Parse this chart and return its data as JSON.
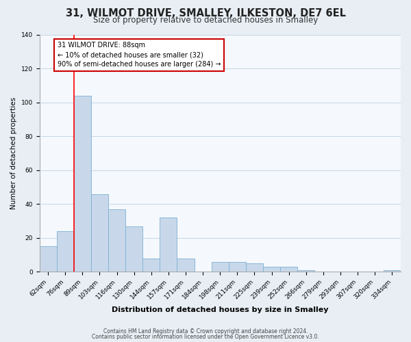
{
  "title": "31, WILMOT DRIVE, SMALLEY, ILKESTON, DE7 6EL",
  "subtitle": "Size of property relative to detached houses in Smalley",
  "xlabel": "Distribution of detached houses by size in Smalley",
  "ylabel": "Number of detached properties",
  "bar_labels": [
    "62sqm",
    "76sqm",
    "89sqm",
    "103sqm",
    "116sqm",
    "130sqm",
    "144sqm",
    "157sqm",
    "171sqm",
    "184sqm",
    "198sqm",
    "211sqm",
    "225sqm",
    "239sqm",
    "252sqm",
    "266sqm",
    "279sqm",
    "293sqm",
    "307sqm",
    "320sqm",
    "334sqm"
  ],
  "bar_heights": [
    15,
    24,
    104,
    46,
    37,
    27,
    8,
    32,
    8,
    0,
    6,
    6,
    5,
    3,
    3,
    1,
    0,
    0,
    0,
    0,
    1
  ],
  "bar_color": "#c8d8ea",
  "bar_edge_color": "#7bafd4",
  "red_line_index": 2,
  "annotation_line1": "31 WILMOT DRIVE: 88sqm",
  "annotation_line2": "← 10% of detached houses are smaller (32)",
  "annotation_line3": "90% of semi-detached houses are larger (284) →",
  "annotation_box_color": "#ffffff",
  "annotation_box_edge_color": "#cc0000",
  "ylim": [
    0,
    140
  ],
  "yticks": [
    0,
    20,
    40,
    60,
    80,
    100,
    120,
    140
  ],
  "footer_line1": "Contains HM Land Registry data © Crown copyright and database right 2024.",
  "footer_line2": "Contains public sector information licensed under the Open Government Licence v3.0.",
  "background_color": "#e8eef4",
  "plot_background_color": "#f5f8fc",
  "grid_color": "#c5d5e5",
  "title_fontsize": 10.5,
  "subtitle_fontsize": 8.5,
  "xlabel_fontsize": 8,
  "ylabel_fontsize": 7.5,
  "tick_fontsize": 6.5,
  "footer_fontsize": 5.5
}
